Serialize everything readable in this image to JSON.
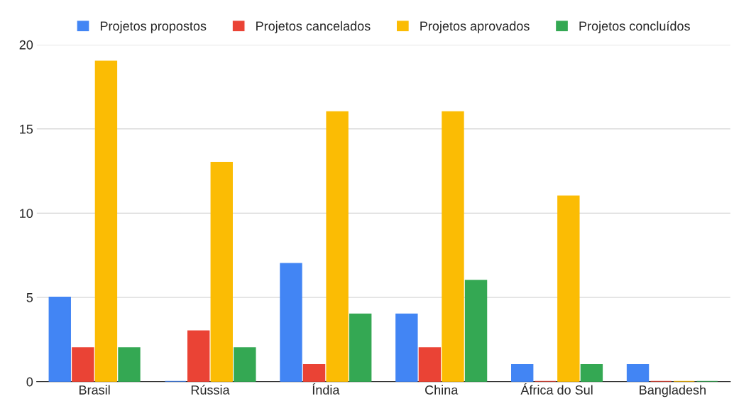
{
  "chart_data": {
    "type": "bar",
    "categories": [
      "Brasil",
      "Rússia",
      "Índia",
      "China",
      "África do Sul",
      "Bangladesh"
    ],
    "series": [
      {
        "name": "Projetos propostos",
        "color": "#4285f4",
        "values": [
          5,
          0,
          7,
          4,
          1,
          1
        ]
      },
      {
        "name": "Projetos cancelados",
        "color": "#ea4335",
        "values": [
          2,
          3,
          1,
          2,
          0,
          0
        ]
      },
      {
        "name": "Projetos aprovados",
        "color": "#fbbc04",
        "values": [
          19,
          13,
          16,
          16,
          11,
          0
        ]
      },
      {
        "name": "Projetos concluídos",
        "color": "#34a853",
        "values": [
          2,
          2,
          4,
          6,
          1,
          0
        ]
      }
    ],
    "ylim": [
      0,
      20
    ],
    "yticks": [
      0,
      5,
      10,
      15,
      20
    ],
    "grid": "y",
    "legend": "top"
  }
}
